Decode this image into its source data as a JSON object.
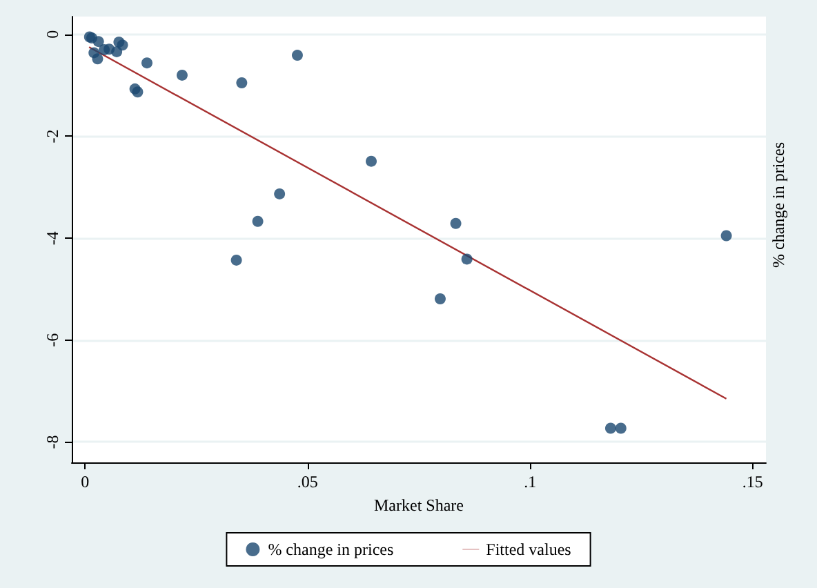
{
  "chart_data": {
    "type": "scatter",
    "xlabel": "Market Share",
    "ylabel": "% change in prices",
    "series": [
      {
        "name": "% change in prices",
        "color": "#1a476f",
        "marker": "circle",
        "x": [
          0.001,
          0.0015,
          0.003,
          0.002,
          0.0028,
          0.0043,
          0.0054,
          0.0071,
          0.0076,
          0.0084,
          0.0112,
          0.0118,
          0.0139,
          0.0218,
          0.0352,
          0.0477,
          0.034,
          0.0388,
          0.0437,
          0.0643,
          0.0833,
          0.0858,
          0.0798,
          0.1181,
          0.1204,
          0.1441
        ],
        "values": [
          -0.05,
          -0.07,
          -0.14,
          -0.36,
          -0.48,
          -0.3,
          -0.29,
          -0.34,
          -0.15,
          -0.21,
          -1.07,
          -1.13,
          -0.56,
          -0.8,
          -0.95,
          -0.41,
          -4.43,
          -3.67,
          -3.13,
          -2.49,
          -3.71,
          -4.41,
          -5.19,
          -7.73,
          -7.73,
          -3.95
        ]
      },
      {
        "name": "Fitted values",
        "type": "line",
        "color": "#a83232",
        "marker": "none",
        "line_style": "solid",
        "x": [
          0.0009,
          0.1441
        ],
        "values": [
          -0.25,
          -7.15
        ]
      }
    ],
    "xlim": [
      -0.003,
      0.153
    ],
    "xticks": [
      {
        "value": 0,
        "label": "0"
      },
      {
        "value": 0.05,
        "label": ".05"
      },
      {
        "value": 0.1,
        "label": ".1"
      },
      {
        "value": 0.15,
        "label": ".15"
      }
    ],
    "ylim": [
      -8.4,
      0.35
    ],
    "yticks": [
      0,
      -2,
      -4,
      -6,
      -8
    ],
    "grid": "y",
    "legend": "bottom"
  }
}
